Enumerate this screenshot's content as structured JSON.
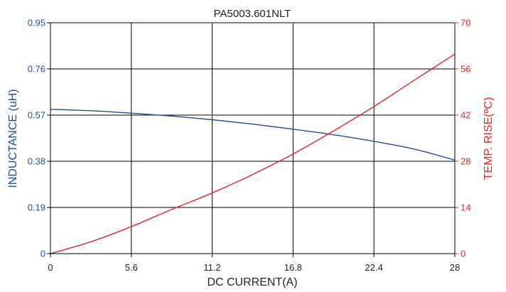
{
  "chart_data": {
    "type": "line",
    "title": "PA5003.601NLT",
    "xlabel": "DC CURRENT(A)",
    "ylabel_left": "INDUCTANCE (uH)",
    "ylabel_right": "TEMP. RISE(ºC)",
    "xlim": [
      0,
      28
    ],
    "ylim_left": [
      0,
      0.95
    ],
    "ylim_right": [
      0,
      70
    ],
    "x_ticks": [
      "0",
      "5.6",
      "11.2",
      "16.8",
      "22.4",
      "28"
    ],
    "y_left_ticks": [
      "0",
      "0.19",
      "0.38",
      "0.57",
      "0.76",
      "0.95"
    ],
    "y_right_ticks": [
      "0",
      "14",
      "28",
      "42",
      "56",
      "70"
    ],
    "grid": true,
    "colors": {
      "inductance": "#1f4e9c",
      "temp_rise": "#e8232a",
      "grid": "#000000"
    },
    "series": [
      {
        "axis": "left",
        "color": "#1f4e9c",
        "x": [
          0,
          2.8,
          5.6,
          8.4,
          11.2,
          14,
          16.8,
          19.6,
          22.4,
          25.2,
          28
        ],
        "y": [
          0.594,
          0.588,
          0.578,
          0.566,
          0.551,
          0.533,
          0.512,
          0.489,
          0.462,
          0.43,
          0.385
        ]
      },
      {
        "axis": "right",
        "color": "#e8232a",
        "x": [
          0,
          2.8,
          5.6,
          8.4,
          11.2,
          14,
          16.8,
          19.6,
          22.4,
          25.2,
          28
        ],
        "y": [
          0,
          3.6,
          8.2,
          13.4,
          18.4,
          24,
          30.2,
          37.2,
          44.6,
          52.6,
          60.5
        ]
      }
    ]
  }
}
